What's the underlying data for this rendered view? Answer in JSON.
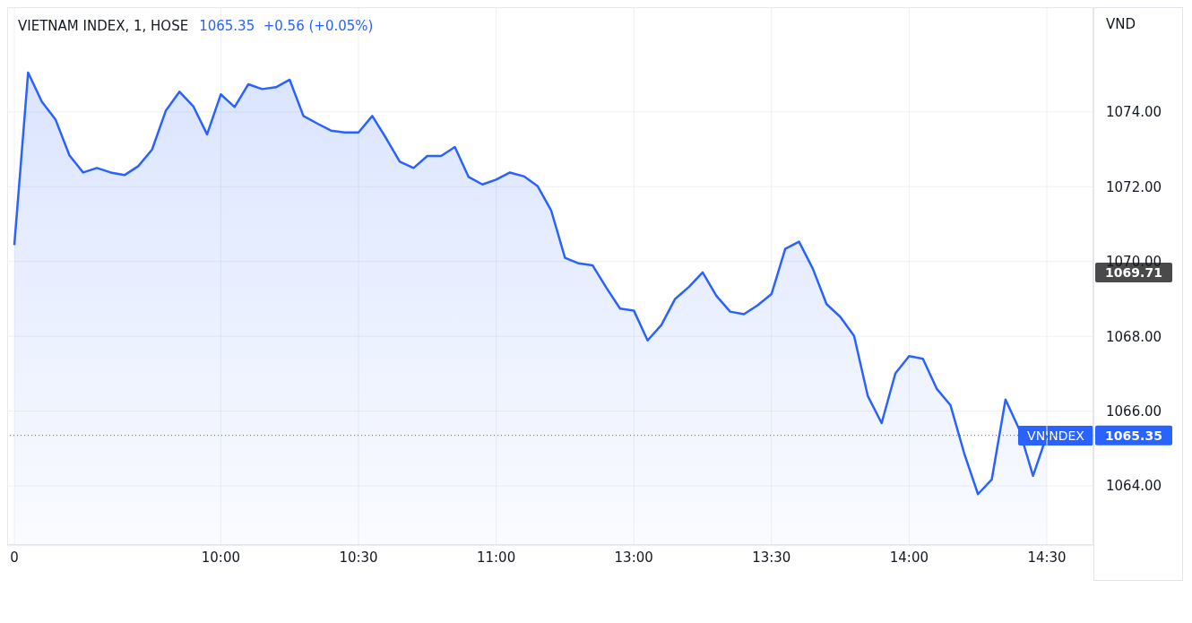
{
  "chart_data": {
    "type": "area",
    "title": "VIETNAM INDEX, 1, HOSE",
    "subtitle": "1065.35  +0.56 (+0.05%)",
    "ylabel": "VND",
    "categories": [
      "0",
      null,
      null,
      null,
      null,
      null,
      null,
      null,
      null,
      null,
      null,
      null,
      null,
      null,
      null,
      "10:00",
      null,
      null,
      null,
      null,
      null,
      null,
      null,
      null,
      null,
      "10:30",
      null,
      null,
      null,
      null,
      null,
      null,
      null,
      null,
      null,
      "11:00",
      null,
      null,
      null,
      null,
      null,
      null,
      null,
      null,
      null,
      "13:00",
      null,
      null,
      null,
      null,
      null,
      null,
      null,
      null,
      null,
      "13:30",
      null,
      null,
      null,
      null,
      null,
      null,
      null,
      null,
      null,
      "14:00",
      null,
      null,
      null,
      null,
      null,
      null,
      null,
      null,
      null,
      "14:30"
    ],
    "series": [
      {
        "color": "#2962ff",
        "values": [
          1070.44,
          1075.05,
          1074.27,
          1073.79,
          1072.84,
          1072.38,
          1072.5,
          1072.38,
          1072.31,
          1072.55,
          1072.99,
          1074.03,
          1074.54,
          1074.15,
          1073.4,
          1074.47,
          1074.13,
          1074.74,
          1074.61,
          1074.66,
          1074.86,
          1073.89,
          1073.69,
          1073.5,
          1073.45,
          1073.45,
          1073.89,
          1073.3,
          1072.67,
          1072.5,
          1072.82,
          1072.82,
          1073.06,
          1072.26,
          1072.06,
          1072.19,
          1072.38,
          1072.28,
          1072.02,
          1071.36,
          1070.1,
          1069.95,
          1069.9,
          1069.3,
          1068.74,
          1068.69,
          1067.89,
          1068.3,
          1069.0,
          1069.32,
          1069.71,
          1069.08,
          1068.66,
          1068.59,
          1068.83,
          1069.13,
          1070.34,
          1070.53,
          1069.81,
          1068.86,
          1068.52,
          1068.01,
          1066.4,
          1065.68,
          1067.01,
          1067.47,
          1067.4,
          1066.6,
          1066.16,
          1064.87,
          1063.78,
          1064.17,
          1066.31,
          1065.51,
          1064.27,
          1065.35
        ]
      }
    ],
    "ylim": [
      1062.42,
      1076.8
    ],
    "yticks": [
      {
        "value": 1064,
        "label": "1064.00"
      },
      {
        "value": 1066,
        "label": "1066.00"
      },
      {
        "value": 1068,
        "label": "1068.00"
      },
      {
        "value": 1070,
        "label": "1070.00"
      },
      {
        "value": 1072,
        "label": "1072.00"
      },
      {
        "value": 1074,
        "label": "1074.00"
      }
    ],
    "ref_lines": [
      {
        "axis": "y",
        "value": 1065.35,
        "label": "1065.35",
        "color": "#2962ff",
        "line_style": "dotted"
      }
    ],
    "annotations": [
      {
        "text": "VNINDEX",
        "x": "14:30",
        "y": 1065.35
      },
      "1069.71"
    ],
    "grid": true,
    "legend": false,
    "marker": "none",
    "line_style": "solid"
  }
}
